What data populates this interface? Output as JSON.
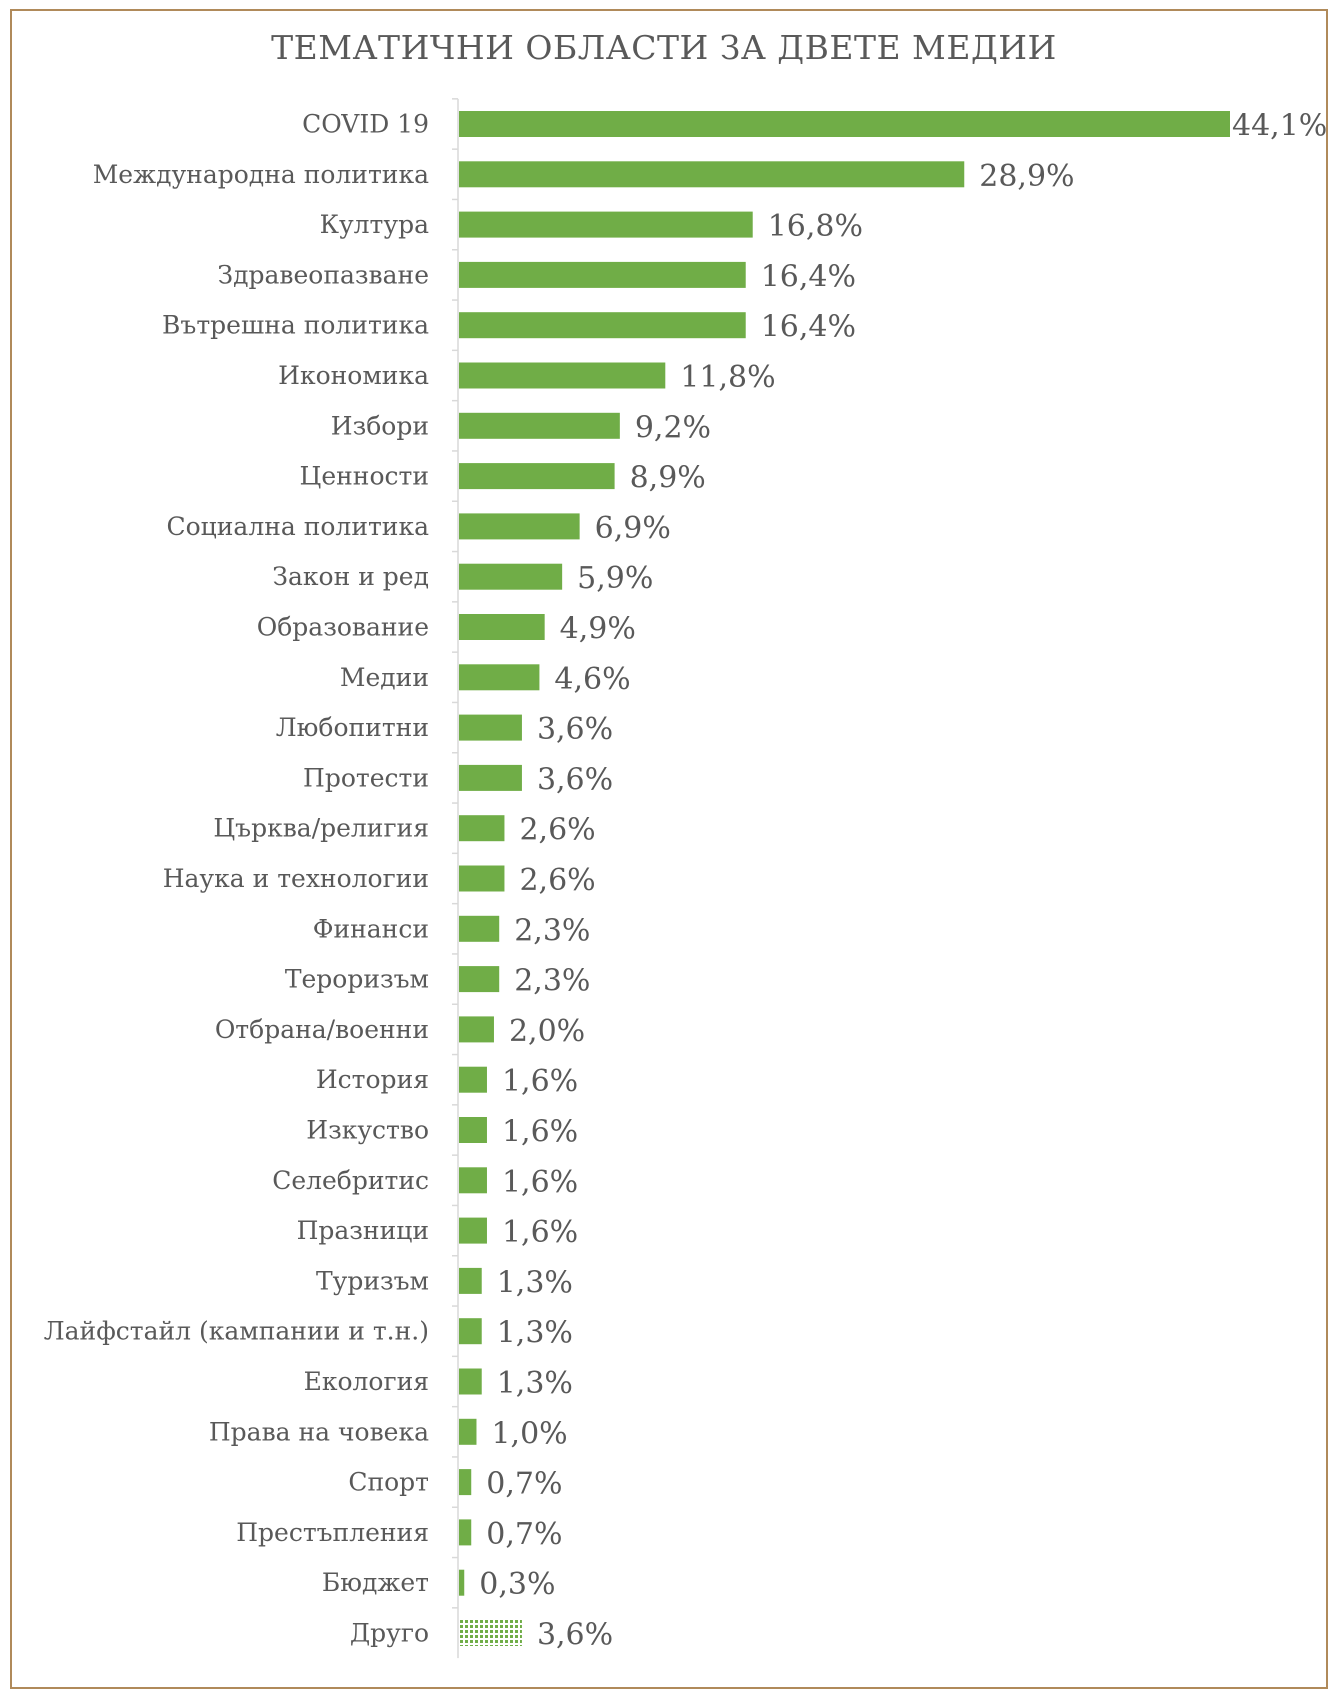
{
  "chart_data": {
    "type": "bar",
    "orientation": "horizontal",
    "title": "ТЕМАТИЧНИ ОБЛАСТИ ЗА ДВЕТЕ МЕДИИ",
    "xlabel": "",
    "ylabel": "",
    "grid": false,
    "legend": "none",
    "xlim": [
      0,
      44.1
    ],
    "categories": [
      "COVID 19",
      "Международна политика",
      "Култура",
      "Здравеопазване",
      "Вътрешна политика",
      "Икономика",
      "Избори",
      "Ценности",
      "Социална политика",
      "Закон и ред",
      "Образование",
      "Медии",
      "Любопитни",
      "Протести",
      "Църква/религия",
      "Наука и технологии",
      "Финанси",
      "Тероризъм",
      "Отбрана/военни",
      "История",
      "Изкуство",
      "Селебритис",
      "Празници",
      "Туризъм",
      "Лайфстайл (кампании и т.н.)",
      "Екология",
      "Права на човека",
      "Спорт",
      "Престъпления",
      "Бюджет",
      "Друго"
    ],
    "values": [
      44.1,
      28.9,
      16.8,
      16.4,
      16.4,
      11.8,
      9.2,
      8.9,
      6.9,
      5.9,
      4.9,
      4.6,
      3.6,
      3.6,
      2.6,
      2.6,
      2.3,
      2.3,
      2.0,
      1.6,
      1.6,
      1.6,
      1.6,
      1.3,
      1.3,
      1.3,
      1.0,
      0.7,
      0.7,
      0.3,
      3.6
    ],
    "value_labels": [
      "44,1%",
      "28,9%",
      "16,8%",
      "16,4%",
      "16,4%",
      "11,8%",
      "9,2%",
      "8,9%",
      "6,9%",
      "5,9%",
      "4,9%",
      "4,6%",
      "3,6%",
      "3,6%",
      "2,6%",
      "2,6%",
      "2,3%",
      "2,3%",
      "2,0%",
      "1,6%",
      "1,6%",
      "1,6%",
      "1,6%",
      "1,3%",
      "1,3%",
      "1,3%",
      "1,0%",
      "0,7%",
      "0,7%",
      "0,3%",
      "3,6%"
    ],
    "patterned_categories": [
      "Друго"
    ],
    "colors": {
      "bar": "#70ad47",
      "pattern_dot": "#70ad47",
      "pattern_bg": "#ffffff",
      "axis": "#d9d9d9",
      "text": "#595959",
      "border": "#b08a5a"
    }
  }
}
